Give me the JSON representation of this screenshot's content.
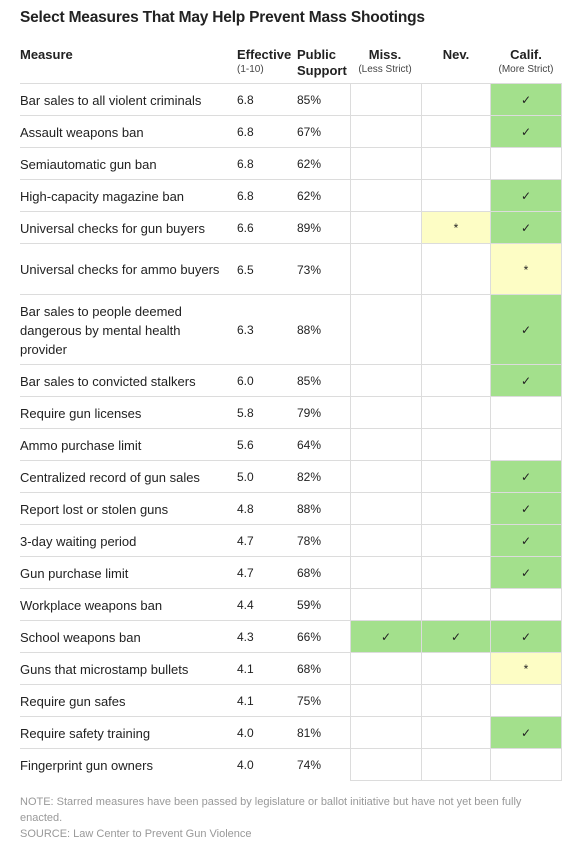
{
  "title": "Select Measures That May Help Prevent Mass Shootings",
  "headers": {
    "measure": "Measure",
    "effective": "Effective",
    "effective_sub": "(1-10)",
    "support_line1": "Public",
    "support_line2": "Support",
    "miss": "Miss.",
    "miss_sub": "(Less Strict)",
    "nev": "Nev.",
    "calif": "Calif.",
    "calif_sub": "(More Strict)"
  },
  "rows": [
    {
      "measure": "Bar sales to all violent criminals",
      "effective": "6.8",
      "support": "85%",
      "miss": "",
      "nev": "",
      "calif": "passed"
    },
    {
      "measure": "Assault weapons ban",
      "effective": "6.8",
      "support": "67%",
      "miss": "",
      "nev": "",
      "calif": "passed"
    },
    {
      "measure": "Semiautomatic gun ban",
      "effective": "6.8",
      "support": "62%",
      "miss": "",
      "nev": "",
      "calif": ""
    },
    {
      "measure": "High-capacity magazine ban",
      "effective": "6.8",
      "support": "62%",
      "miss": "",
      "nev": "",
      "calif": "passed"
    },
    {
      "measure": "Universal checks for gun buyers",
      "effective": "6.6",
      "support": "89%",
      "miss": "",
      "nev": "pending",
      "calif": "passed"
    },
    {
      "measure": "Universal checks for ammo buyers",
      "effective": "6.5",
      "support": "73%",
      "miss": "",
      "nev": "",
      "calif": "pending"
    },
    {
      "measure": "Bar sales to people deemed dangerous by mental health provider",
      "effective": "6.3",
      "support": "88%",
      "miss": "",
      "nev": "",
      "calif": "passed"
    },
    {
      "measure": "Bar sales to convicted stalkers",
      "effective": "6.0",
      "support": "85%",
      "miss": "",
      "nev": "",
      "calif": "passed"
    },
    {
      "measure": "Require gun licenses",
      "effective": "5.8",
      "support": "79%",
      "miss": "",
      "nev": "",
      "calif": ""
    },
    {
      "measure": "Ammo purchase limit",
      "effective": "5.6",
      "support": "64%",
      "miss": "",
      "nev": "",
      "calif": ""
    },
    {
      "measure": "Centralized record of gun sales",
      "effective": "5.0",
      "support": "82%",
      "miss": "",
      "nev": "",
      "calif": "passed"
    },
    {
      "measure": "Report lost or stolen guns",
      "effective": "4.8",
      "support": "88%",
      "miss": "",
      "nev": "",
      "calif": "passed"
    },
    {
      "measure": "3-day waiting period",
      "effective": "4.7",
      "support": "78%",
      "miss": "",
      "nev": "",
      "calif": "passed"
    },
    {
      "measure": "Gun purchase limit",
      "effective": "4.7",
      "support": "68%",
      "miss": "",
      "nev": "",
      "calif": "passed"
    },
    {
      "measure": "Workplace weapons ban",
      "effective": "4.4",
      "support": "59%",
      "miss": "",
      "nev": "",
      "calif": ""
    },
    {
      "measure": "School weapons ban",
      "effective": "4.3",
      "support": "66%",
      "miss": "passed",
      "nev": "passed",
      "calif": "passed"
    },
    {
      "measure": "Guns that microstamp bullets",
      "effective": "4.1",
      "support": "68%",
      "miss": "",
      "nev": "",
      "calif": "pending"
    },
    {
      "measure": "Require gun safes",
      "effective": "4.1",
      "support": "75%",
      "miss": "",
      "nev": "",
      "calif": ""
    },
    {
      "measure": "Require safety training",
      "effective": "4.0",
      "support": "81%",
      "miss": "",
      "nev": "",
      "calif": "passed"
    },
    {
      "measure": "Fingerprint gun owners",
      "effective": "4.0",
      "support": "74%",
      "miss": "",
      "nev": "",
      "calif": ""
    }
  ],
  "marks": {
    "passed": "✓",
    "pending": "*"
  },
  "colors": {
    "passed": "#a3e08c",
    "pending": "#fdfdc5"
  },
  "note": "NOTE: Starred measures have been passed by legislature or ballot initiative but have not yet been fully enacted.",
  "source": "SOURCE: Law Center to Prevent Gun Violence"
}
